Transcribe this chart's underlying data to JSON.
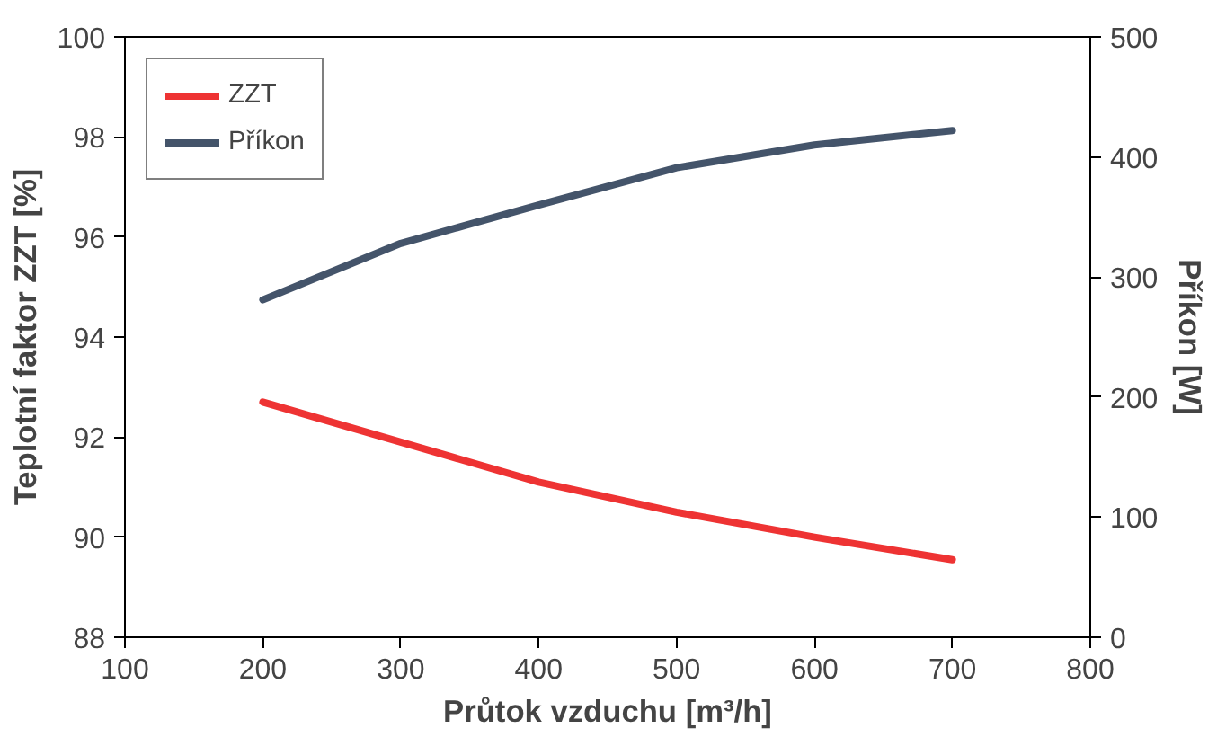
{
  "chart_data": {
    "type": "line",
    "xlabel": "Průtok vzduchu [m³/h]",
    "ylabel": "Teplotní faktor ZZT [%]",
    "y2label": "Příkon [W]",
    "x": [
      200,
      300,
      400,
      500,
      600,
      700
    ],
    "series": [
      {
        "name": "ZZT",
        "color": "#ee3333",
        "values": [
          92.7,
          91.9,
          91.1,
          90.5,
          90.0,
          89.55
        ]
      },
      {
        "name": "Příkon",
        "color": "#44546a",
        "axis": "y2",
        "values": [
          281,
          328,
          360,
          391,
          410,
          422
        ]
      }
    ],
    "xlim": [
      100,
      800
    ],
    "xticks": [
      100,
      200,
      300,
      400,
      500,
      600,
      700,
      800
    ],
    "ylim": [
      88,
      100
    ],
    "yticks": [
      88,
      90,
      92,
      94,
      96,
      98,
      100
    ],
    "y2lim": [
      0,
      500
    ],
    "y2ticks": [
      0,
      100,
      200,
      300,
      400,
      500
    ],
    "grid": false,
    "legend": "top left",
    "marker": "none",
    "line_style": "solid"
  }
}
